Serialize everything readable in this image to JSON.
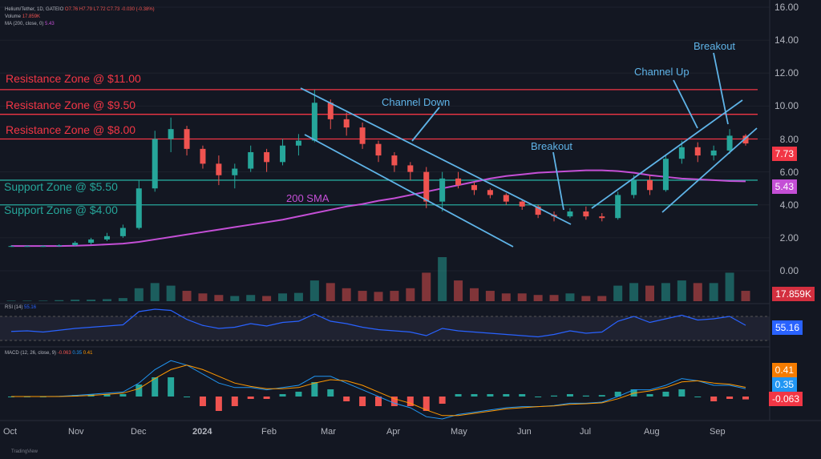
{
  "header": {
    "symbol": "Helium/Tether, 1D, GATEIO",
    "ohlc": "O7.76 H7.79 L7.72 C7.73 -0.030 (-0.38%)",
    "volume_label": "Volume",
    "volume_value": "17.859K",
    "ma_label": "MA (200, close, 0)",
    "ma_value": "5.43"
  },
  "rsi": {
    "label": "RSI (14)",
    "value": "55.16"
  },
  "macd": {
    "label": "MACD (12, 26, close, 9)",
    "hist": "-0.063",
    "macd": "0.35",
    "signal": "0.41"
  },
  "badges": {
    "price": "7.73",
    "ma": "5.43",
    "volume": "17.859K",
    "rsi": "55.16",
    "macd_signal": "0.41",
    "macd_line": "0.35",
    "macd_hist": "-0.063"
  },
  "annotations": {
    "res11": "Resistance Zone @ $11.00",
    "res95": "Resistance Zone @ $9.50",
    "res8": "Resistance Zone @ $8.00",
    "sup55": "Support Zone @ $5.50",
    "sup4": "Support Zone @ $4.00",
    "sma": "200 SMA",
    "channel_down": "Channel Down",
    "breakout1": "Breakout",
    "channel_up": "Channel Up",
    "breakout2": "Breakout"
  },
  "branding": "TradingView",
  "colors": {
    "bg": "#131722",
    "up": "#26a69a",
    "down": "#ef5350",
    "sma": "#c44fd6",
    "resistance": "#f23645",
    "support": "#26a69a",
    "trend": "#5fb4e8",
    "rsi": "#2962ff"
  },
  "chart_data": {
    "type": "candlestick",
    "title": "Helium/Tether, 1D, GATEIO",
    "y_ticks": [
      "16.00",
      "14.00",
      "12.00",
      "10.00",
      "8.00",
      "6.00",
      "4.00",
      "2.00",
      "0.00"
    ],
    "ylim": [
      0,
      16
    ],
    "x_ticks": [
      "Oct",
      "Nov",
      "Dec",
      "2024",
      "Feb",
      "Mar",
      "Apr",
      "May",
      "Jun",
      "Jul",
      "Aug",
      "Sep"
    ],
    "weekly_ohlc": [
      [
        1.5,
        1.55,
        1.45,
        1.5
      ],
      [
        1.5,
        1.55,
        1.45,
        1.5
      ],
      [
        1.5,
        1.55,
        1.45,
        1.5
      ],
      [
        1.5,
        1.6,
        1.45,
        1.55
      ],
      [
        1.55,
        1.8,
        1.5,
        1.7
      ],
      [
        1.7,
        2.0,
        1.6,
        1.9
      ],
      [
        1.9,
        2.3,
        1.8,
        2.1
      ],
      [
        2.1,
        2.8,
        2.0,
        2.6
      ],
      [
        2.6,
        5.5,
        2.5,
        5.0
      ],
      [
        5.0,
        8.5,
        4.8,
        8.0
      ],
      [
        8.0,
        9.3,
        7.2,
        8.6
      ],
      [
        8.6,
        8.8,
        7.0,
        7.4
      ],
      [
        7.4,
        7.6,
        6.2,
        6.5
      ],
      [
        6.5,
        7.0,
        5.2,
        5.8
      ],
      [
        5.8,
        6.5,
        5.0,
        6.2
      ],
      [
        6.2,
        7.6,
        6.0,
        7.2
      ],
      [
        7.2,
        7.4,
        6.0,
        6.6
      ],
      [
        6.6,
        8.0,
        6.4,
        7.6
      ],
      [
        7.6,
        8.3,
        7.0,
        7.9
      ],
      [
        7.9,
        11.0,
        7.8,
        10.2
      ],
      [
        10.2,
        10.4,
        8.6,
        9.2
      ],
      [
        9.2,
        9.6,
        8.2,
        8.7
      ],
      [
        8.7,
        9.0,
        7.4,
        7.7
      ],
      [
        7.7,
        7.9,
        6.6,
        7.0
      ],
      [
        7.0,
        7.2,
        6.0,
        6.4
      ],
      [
        6.4,
        6.6,
        5.5,
        6.0
      ],
      [
        6.0,
        6.3,
        3.8,
        4.2
      ],
      [
        4.2,
        6.0,
        3.6,
        5.6
      ],
      [
        5.6,
        6.0,
        5.0,
        5.2
      ],
      [
        5.2,
        5.4,
        4.6,
        4.9
      ],
      [
        4.9,
        5.0,
        4.4,
        4.6
      ],
      [
        4.6,
        4.7,
        4.0,
        4.2
      ],
      [
        4.2,
        4.3,
        3.7,
        3.9
      ],
      [
        3.9,
        4.0,
        3.2,
        3.4
      ],
      [
        3.4,
        3.6,
        3.0,
        3.3
      ],
      [
        3.3,
        3.8,
        3.2,
        3.6
      ],
      [
        3.6,
        3.9,
        3.1,
        3.3
      ],
      [
        3.3,
        3.5,
        3.0,
        3.2
      ],
      [
        3.2,
        4.8,
        3.1,
        4.6
      ],
      [
        4.6,
        5.8,
        4.4,
        5.5
      ],
      [
        5.5,
        5.8,
        4.6,
        4.9
      ],
      [
        4.9,
        7.0,
        4.8,
        6.8
      ],
      [
        6.8,
        7.9,
        6.5,
        7.5
      ],
      [
        7.5,
        7.8,
        6.6,
        7.0
      ],
      [
        7.0,
        7.6,
        6.7,
        7.3
      ],
      [
        7.3,
        8.6,
        7.1,
        8.2
      ],
      [
        8.2,
        8.3,
        7.6,
        7.73
      ]
    ],
    "volume": [
      0.1,
      0.1,
      0.1,
      0.2,
      0.3,
      0.3,
      0.4,
      0.6,
      2.5,
      3.5,
      3.0,
      2.0,
      1.5,
      1.2,
      1.0,
      1.2,
      1.0,
      1.5,
      1.6,
      4.0,
      3.5,
      2.5,
      2.0,
      1.8,
      2.0,
      2.5,
      5.5,
      8.5,
      4.0,
      2.5,
      2.0,
      1.5,
      1.5,
      1.2,
      1.2,
      1.5,
      1.0,
      1.0,
      3.0,
      3.5,
      3.0,
      3.5,
      4.0,
      3.5,
      3.5,
      5.5,
      2.0
    ],
    "sma200": [
      1.5,
      1.5,
      1.5,
      1.5,
      1.52,
      1.55,
      1.6,
      1.65,
      1.75,
      1.9,
      2.05,
      2.2,
      2.35,
      2.5,
      2.65,
      2.8,
      2.95,
      3.1,
      3.3,
      3.5,
      3.7,
      3.9,
      4.05,
      4.25,
      4.4,
      4.6,
      4.8,
      5.0,
      5.2,
      5.4,
      5.6,
      5.75,
      5.85,
      5.95,
      6.0,
      6.05,
      6.1,
      6.1,
      6.05,
      5.95,
      5.8,
      5.7,
      5.6,
      5.55,
      5.5,
      5.45,
      5.43
    ],
    "rsi": [
      45,
      46,
      44,
      47,
      50,
      52,
      54,
      56,
      78,
      82,
      80,
      65,
      55,
      50,
      52,
      58,
      54,
      60,
      62,
      74,
      62,
      58,
      52,
      48,
      46,
      44,
      38,
      50,
      46,
      44,
      42,
      40,
      38,
      36,
      40,
      46,
      42,
      44,
      62,
      70,
      60,
      66,
      72,
      64,
      66,
      70,
      55.16
    ],
    "macd_line": [
      0,
      0,
      0,
      0.01,
      0.05,
      0.1,
      0.15,
      0.2,
      0.6,
      1.2,
      1.6,
      1.4,
      1.0,
      0.6,
      0.4,
      0.4,
      0.3,
      0.4,
      0.5,
      0.9,
      0.9,
      0.6,
      0.3,
      0,
      -0.3,
      -0.5,
      -0.9,
      -1.0,
      -0.8,
      -0.7,
      -0.6,
      -0.5,
      -0.45,
      -0.45,
      -0.4,
      -0.3,
      -0.3,
      -0.25,
      0,
      0.3,
      0.3,
      0.5,
      0.8,
      0.7,
      0.5,
      0.5,
      0.35
    ],
    "macd_signal": [
      0,
      0,
      0,
      0,
      0.02,
      0.05,
      0.1,
      0.15,
      0.35,
      0.8,
      1.2,
      1.4,
      1.2,
      0.9,
      0.6,
      0.45,
      0.35,
      0.35,
      0.4,
      0.6,
      0.75,
      0.7,
      0.5,
      0.2,
      -0.1,
      -0.3,
      -0.6,
      -0.85,
      -0.85,
      -0.75,
      -0.65,
      -0.55,
      -0.5,
      -0.45,
      -0.42,
      -0.35,
      -0.32,
      -0.28,
      -0.1,
      0.15,
      0.25,
      0.4,
      0.65,
      0.7,
      0.6,
      0.55,
      0.41
    ]
  }
}
